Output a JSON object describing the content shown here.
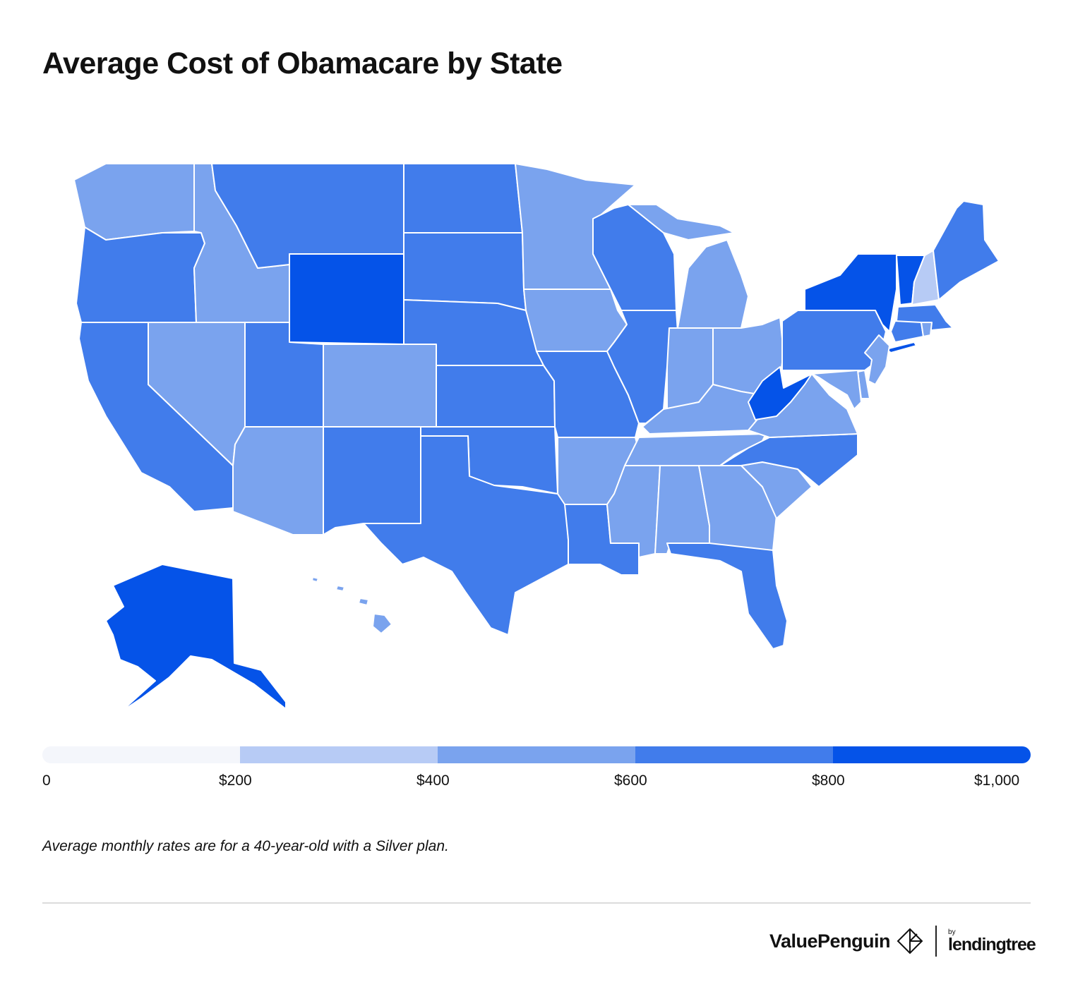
{
  "title": "Average Cost of Obamacare by State",
  "note": "Average monthly rates are for a 40-year-old with a Silver plan.",
  "legend": {
    "ticks": [
      "0",
      "$200",
      "$400",
      "$600",
      "$800",
      "$1,000"
    ],
    "bins": [
      {
        "range": [
          0,
          200
        ],
        "color": "#f4f6fb"
      },
      {
        "range": [
          200,
          400
        ],
        "color": "#b7cbf5"
      },
      {
        "range": [
          400,
          600
        ],
        "color": "#7aa3ee"
      },
      {
        "range": [
          600,
          800
        ],
        "color": "#417ceb"
      },
      {
        "range": [
          800,
          1000
        ],
        "color": "#0553e8"
      }
    ]
  },
  "state_bins": {
    "WA": 2,
    "OR": 3,
    "CA": 3,
    "NV": 2,
    "ID": 2,
    "MT": 3,
    "WY": 4,
    "UT": 3,
    "AZ": 2,
    "CO": 2,
    "NM": 3,
    "ND": 3,
    "SD": 3,
    "NE": 3,
    "KS": 3,
    "OK": 3,
    "TX": 3,
    "MN": 2,
    "IA": 2,
    "MO": 3,
    "AR": 2,
    "LA": 3,
    "WI": 3,
    "IL": 3,
    "MI": 2,
    "IN": 2,
    "OH": 2,
    "KY": 2,
    "TN": 2,
    "MS": 2,
    "AL": 2,
    "GA": 2,
    "FL": 3,
    "SC": 2,
    "NC": 3,
    "VA": 2,
    "WV": 4,
    "PA": 3,
    "NY": 4,
    "VT": 4,
    "NH": 1,
    "ME": 3,
    "MA": 3,
    "CT": 3,
    "RI": 2,
    "NJ": 2,
    "DE": 2,
    "MD": 2,
    "AK": 4,
    "HI": 2
  },
  "branding": {
    "brand": "ValuePenguin",
    "by": "by",
    "partner": "lendingtree"
  }
}
